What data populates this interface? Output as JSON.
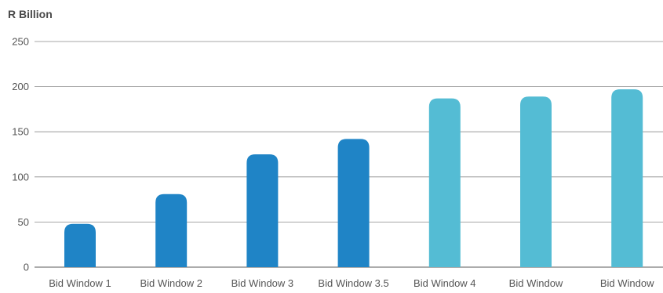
{
  "chart_data": {
    "type": "bar",
    "ylabel": "R Billion",
    "xlabel": "",
    "title": "",
    "ylim": [
      0,
      250
    ],
    "yticks": [
      0,
      50,
      100,
      150,
      200,
      250
    ],
    "grid": true,
    "categories": [
      "Bid Window 1",
      "Bid Window 2",
      "Bid Window 3",
      "Bid Window 3.5",
      "Bid Window 4",
      "Bid Window",
      "Bid Window"
    ],
    "values": [
      48,
      81,
      125,
      142,
      187,
      189,
      197
    ],
    "bar_colors": [
      "#1f84c6",
      "#1f84c6",
      "#1f84c6",
      "#1f84c6",
      "#54bcd4",
      "#54bcd4",
      "#54bcd4"
    ]
  }
}
